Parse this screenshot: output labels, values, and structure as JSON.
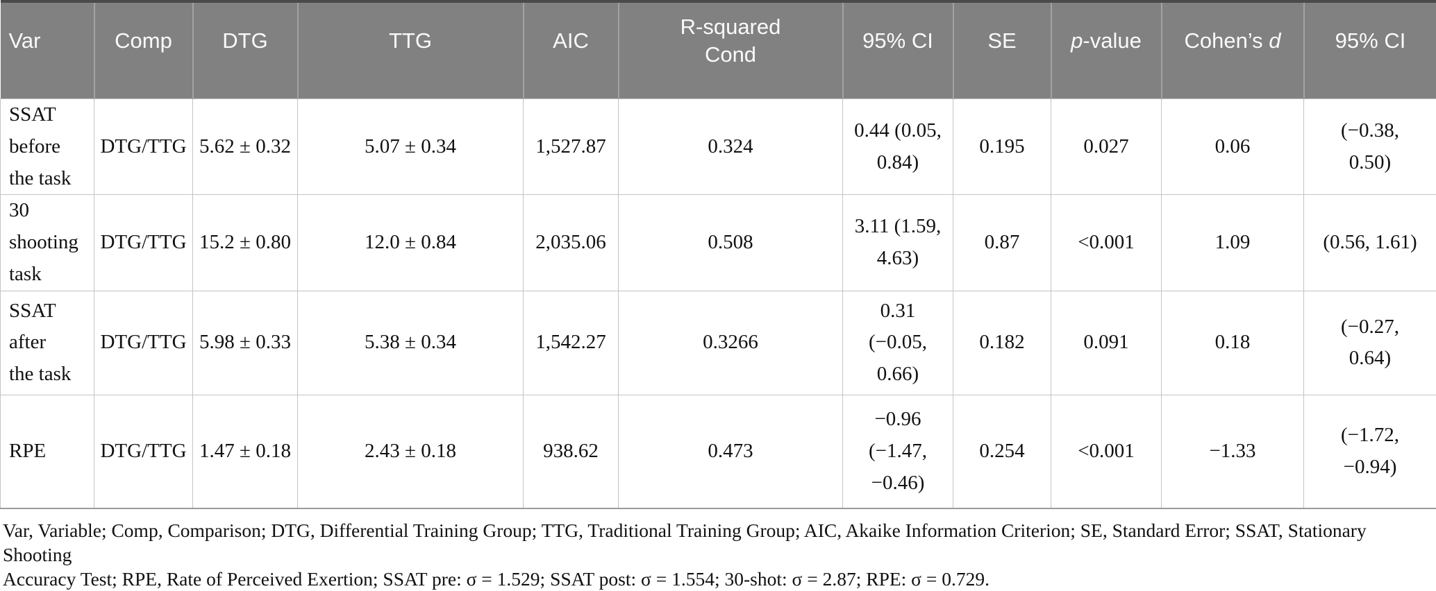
{
  "colors": {
    "header_bg": "#818181",
    "header_text": "#fafafa",
    "body_text": "#111111",
    "grid": "#c4c4c4",
    "table_bottom": "#9a9a9a",
    "top_border": "#4a4a4a"
  },
  "table": {
    "columns": [
      "Var",
      "Comp",
      "DTG",
      "TTG",
      "AIC",
      "R-squared\nCond",
      "95% CI",
      "SE",
      "p-value",
      "Cohen’s d",
      "95% CI"
    ],
    "p_value_parts": {
      "em": "p",
      "post": "-value"
    },
    "cohens_d_parts": {
      "pre": "Cohen’s ",
      "em": "d"
    },
    "rows": [
      {
        "cells": [
          "SSAT before\nthe task",
          "DTG/TTG",
          "5.62 ± 0.32",
          "5.07 ± 0.34",
          "1,527.87",
          "0.324",
          "0.44 (0.05,\n0.84)",
          "0.195",
          "0.027",
          "0.06",
          "(−0.38,\n0.50)"
        ]
      },
      {
        "cells": [
          "30 shooting\ntask",
          "DTG/TTG",
          "15.2 ± 0.80",
          "12.0 ± 0.84",
          "2,035.06",
          "0.508",
          "3.11 (1.59,\n4.63)",
          "0.87",
          "<0.001",
          "1.09",
          "(0.56, 1.61)"
        ]
      },
      {
        "cells": [
          "SSAT after\nthe task",
          "DTG/TTG",
          "5.98 ± 0.33",
          "5.38 ± 0.34",
          "1,542.27",
          "0.3266",
          "0.31\n(−0.05,\n0.66)",
          "0.182",
          "0.091",
          "0.18",
          "(−0.27,\n0.64)"
        ]
      },
      {
        "cells": [
          "RPE",
          "DTG/TTG",
          "1.47 ± 0.18",
          "2.43 ± 0.18",
          "938.62",
          "0.473",
          "−0.96\n(−1.47,\n−0.46)",
          "0.254",
          "<0.001",
          "−1.33",
          "(−1.72,\n−0.94)"
        ]
      }
    ]
  },
  "footnote": "Var, Variable; Comp, Comparison; DTG, Differential Training Group; TTG, Traditional Training Group; AIC, Akaike Information Criterion; SE, Standard Error; SSAT, Stationary Shooting\nAccuracy Test; RPE, Rate of Perceived Exertion; SSAT pre: σ = 1.529; SSAT post: σ = 1.554; 30-shot: σ = 2.87; RPE: σ = 0.729."
}
